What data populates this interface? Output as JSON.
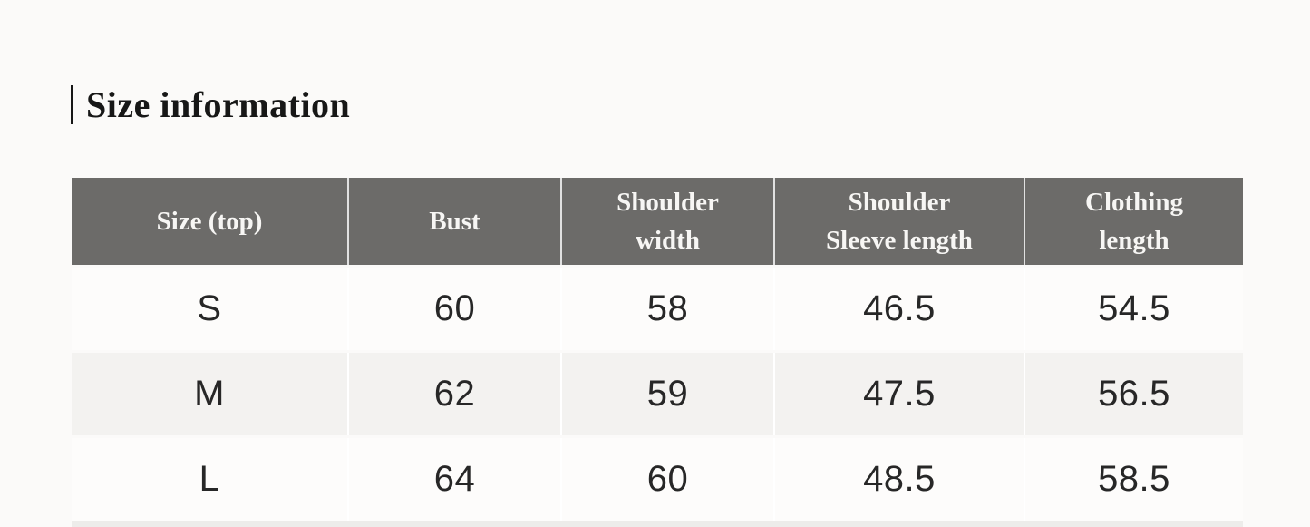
{
  "heading": {
    "title": "Size information"
  },
  "size_table": {
    "columns": [
      "Size (top)",
      "Bust",
      "Shoulder\nwidth",
      "Shoulder\nSleeve length",
      "Clothing\nlength"
    ],
    "rows": [
      {
        "cells": [
          "S",
          "60",
          "58",
          "46.5",
          "54.5"
        ]
      },
      {
        "cells": [
          "M",
          "62",
          "59",
          "47.5",
          "56.5"
        ]
      },
      {
        "cells": [
          "L",
          "64",
          "60",
          "48.5",
          "58.5"
        ]
      }
    ],
    "colors": {
      "page_bg": "#fbfaf9",
      "header_bg": "#6c6b69",
      "header_text": "#f7f6f4",
      "row_bg": "#fdfcfb",
      "row_alt_bg": "#f3f2f0",
      "data_text": "#272727",
      "heading_text": "#171717",
      "strip_bg": "#edecea"
    }
  },
  "chart_data": {
    "type": "table",
    "title": "Size information",
    "columns": [
      "Size (top)",
      "Bust",
      "Shoulder width",
      "Shoulder Sleeve length",
      "Clothing length"
    ],
    "rows": [
      [
        "S",
        60,
        58,
        46.5,
        54.5
      ],
      [
        "M",
        62,
        59,
        47.5,
        56.5
      ],
      [
        "L",
        64,
        60,
        48.5,
        58.5
      ]
    ]
  }
}
